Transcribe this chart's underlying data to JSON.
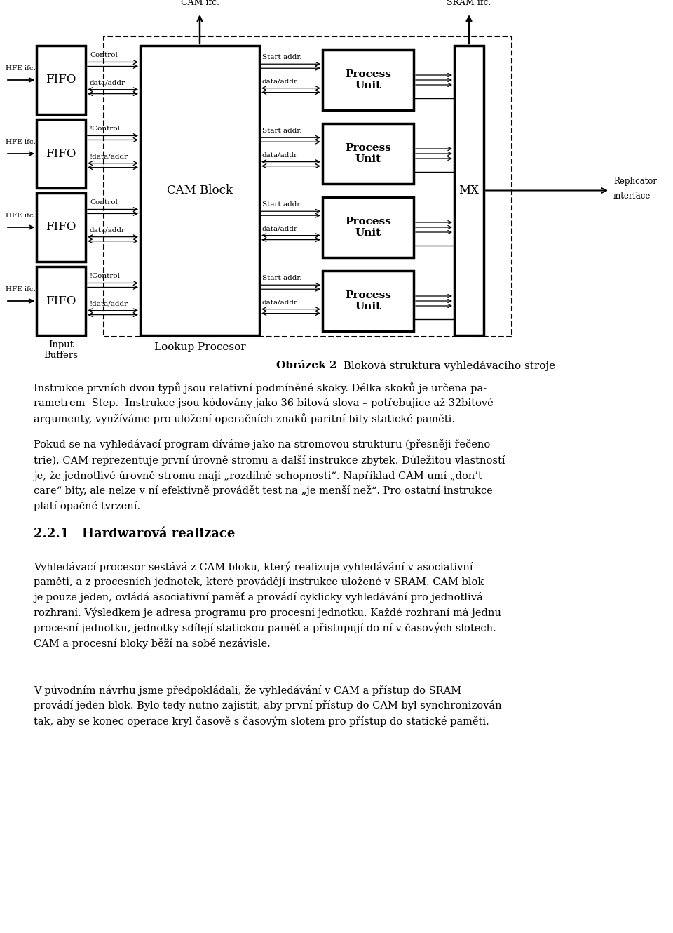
{
  "fig_width": 9.6,
  "fig_height": 13.3,
  "bg_color": "#ffffff",
  "diagram": {
    "cam_ifc_label": "CAM ifc.",
    "sram_ifc_label": "SRAM ifc.",
    "cam_block_label": "CAM Block",
    "mx_label": "MX",
    "replicator_label": "Replicator\ninterface",
    "input_buffers_label": "Input\nBuffers",
    "lookup_procesor_label": "Lookup Procesor",
    "fifo_label": "FIFO",
    "hfe_label": "HFE ifc.",
    "process_unit_label": "Process\nUnit",
    "control_labels": [
      "Control",
      "!Control",
      "Control",
      "!Control"
    ],
    "dataaddr_labels": [
      "data/addr",
      "!data/addr",
      "data/addr",
      "!data/addr"
    ],
    "start_addr_label": "Start addr.",
    "pu_dataaddr_label": "data/addr"
  },
  "texts": {
    "caption_bold": "Obrázek 2",
    "caption_normal": "  Bloková struktura vyhledávacího stroje",
    "p1": "Instrukce prvních dvou typů jsou relativní podmínmé skoky. Délka skoků je určena pa-\nrametrem Step. Instrukce jsou kódovány jako 36-bitová slova – potřebujíce až 32bitové\nargumenty, využíváme pro uložení operačních znaků paritní bity statické paměti.",
    "p2": "Pokud se na vyhledávací program díváme jako na stromovou strukturu (přesněji řečeno\ntrie), CAM reprezentuje první úrovně stromu a další instrukce zbytek. Důležitou vlastností\nje, že jednotlivé úrovně stromu mají „rozdílné schopnosti“. Například CAM umí „don’t\ncare“ bity, ale nelze v ní efektivně provádět test na „je menší než“. Pro ostatní instrukce\nplatí opačné tvrzení.",
    "section": "2.2.1   Hardwarová realizace",
    "p3": "Vyhledávací procesor sestává z CAM bloku, který realizuje vyhledávání v asociativní\npaměti, a z procesních jednotek, které provádějí instrukce uložené v SRAM. CAM blok\nje pouze jeden, ovládá asociativní paměť a provádí cyklicky vyhledávání pro jednotlivá\nrozhra ní. Výsledkem je adresa programu pro procesní jednotku. Každé rozhra ní má jednu\nprocesní jednotku, jednotky sdílejí statickou paměť a přistupují do ní v časových slotech.\nCAM a procesní bloky běží na sobě nezávisle.",
    "p4": "V původním návrhu jsme předpokládali, že vyhledávání v CAM a přístup do SRAM\nprovádí jeden blok. Bylo tedy nutno zajistit, aby první přístup do CAM byl synchronizován\ntak, aby se konec operace kryl časově s časovým slotem pro přístup do statické paměti."
  }
}
